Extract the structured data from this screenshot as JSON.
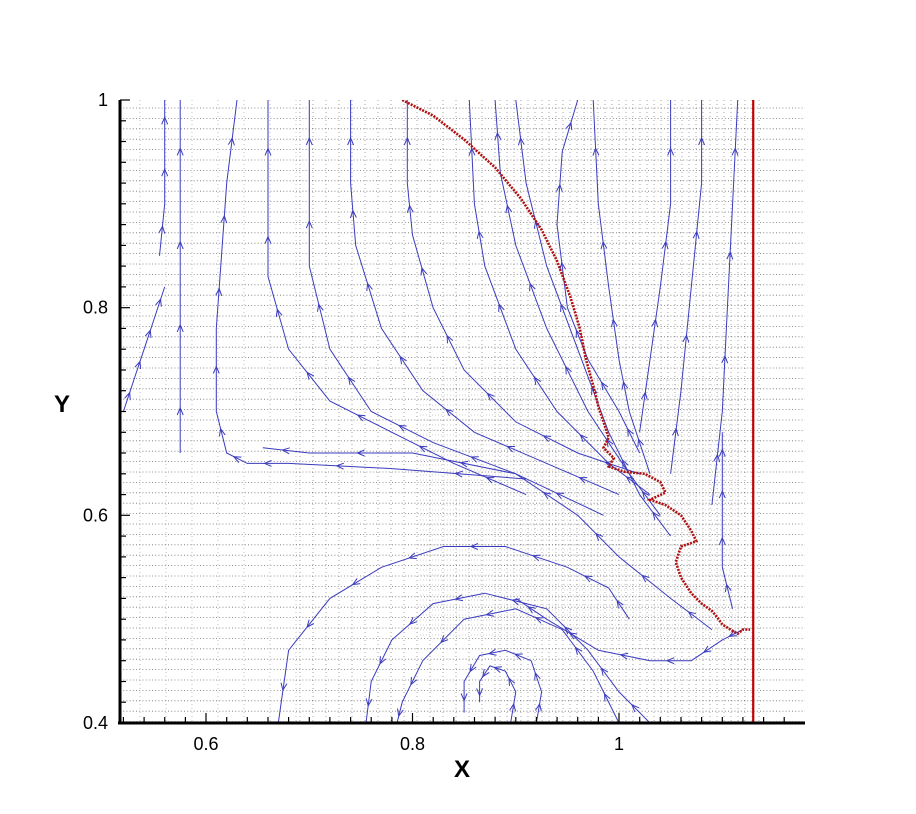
{
  "chart_data": {
    "type": "line",
    "title": "",
    "xlabel": "X",
    "ylabel": "Y",
    "xlim": [
      0.516,
      1.18
    ],
    "ylim": [
      0.4,
      1.0
    ],
    "x_ticks": [
      0.6,
      0.8,
      1.0
    ],
    "x_tick_labels": [
      "0.6",
      "0.8",
      "1"
    ],
    "y_ticks": [
      0.4,
      0.6,
      0.8,
      1.0
    ],
    "y_tick_labels": [
      "0.4",
      "0.6",
      "0.8",
      "1"
    ],
    "grid": "adaptive mesh (dotted)",
    "colors": {
      "streamline": "#3b3bbf",
      "interface": "#b01010",
      "boundary": "#c00000",
      "mesh": "#000000"
    },
    "boundary_line": {
      "x": 1.13
    },
    "interface_curve": [
      [
        0.79,
        1.0
      ],
      [
        0.82,
        0.985
      ],
      [
        0.85,
        0.962
      ],
      [
        0.88,
        0.935
      ],
      [
        0.905,
        0.905
      ],
      [
        0.925,
        0.875
      ],
      [
        0.94,
        0.845
      ],
      [
        0.953,
        0.81
      ],
      [
        0.962,
        0.78
      ],
      [
        0.968,
        0.75
      ],
      [
        0.975,
        0.725
      ],
      [
        0.98,
        0.705
      ],
      [
        0.985,
        0.69
      ],
      [
        0.99,
        0.675
      ],
      [
        0.985,
        0.665
      ],
      [
        0.995,
        0.655
      ],
      [
        0.99,
        0.647
      ],
      [
        1.005,
        0.642
      ],
      [
        1.025,
        0.64
      ],
      [
        1.04,
        0.632
      ],
      [
        1.045,
        0.622
      ],
      [
        1.03,
        0.615
      ],
      [
        1.045,
        0.61
      ],
      [
        1.06,
        0.6
      ],
      [
        1.07,
        0.585
      ],
      [
        1.075,
        0.575
      ],
      [
        1.06,
        0.57
      ],
      [
        1.055,
        0.555
      ],
      [
        1.06,
        0.54
      ],
      [
        1.07,
        0.525
      ],
      [
        1.08,
        0.515
      ],
      [
        1.09,
        0.508
      ],
      [
        1.095,
        0.502
      ],
      [
        1.1,
        0.495
      ],
      [
        1.108,
        0.49
      ],
      [
        1.115,
        0.486
      ],
      [
        1.12,
        0.49
      ],
      [
        1.127,
        0.49
      ]
    ],
    "series": [
      {
        "values": [
          [
            0.52,
            0.7
          ],
          [
            0.53,
            0.73
          ],
          [
            0.54,
            0.76
          ],
          [
            0.55,
            0.79
          ],
          [
            0.56,
            0.82
          ]
        ]
      },
      {
        "values": [
          [
            0.555,
            0.85
          ],
          [
            0.56,
            0.9
          ],
          [
            0.56,
            0.96
          ],
          [
            0.56,
            1.0
          ]
        ]
      },
      {
        "values": [
          [
            0.575,
            0.66
          ],
          [
            0.575,
            0.74
          ],
          [
            0.575,
            0.82
          ],
          [
            0.575,
            0.9
          ],
          [
            0.575,
            1.0
          ]
        ]
      },
      {
        "values": [
          [
            0.91,
            0.635
          ],
          [
            0.78,
            0.645
          ],
          [
            0.68,
            0.65
          ],
          [
            0.64,
            0.65
          ],
          [
            0.62,
            0.66
          ],
          [
            0.61,
            0.7
          ],
          [
            0.61,
            0.78
          ],
          [
            0.615,
            0.85
          ],
          [
            0.62,
            0.92
          ],
          [
            0.63,
            1.0
          ]
        ]
      },
      {
        "values": [
          [
            0.91,
            0.62
          ],
          [
            0.84,
            0.65
          ],
          [
            0.78,
            0.68
          ],
          [
            0.72,
            0.71
          ],
          [
            0.68,
            0.76
          ],
          [
            0.66,
            0.83
          ],
          [
            0.66,
            0.9
          ],
          [
            0.66,
            1.0
          ]
        ]
      },
      {
        "values": [
          [
            0.985,
            0.6
          ],
          [
            0.9,
            0.64
          ],
          [
            0.82,
            0.67
          ],
          [
            0.76,
            0.7
          ],
          [
            0.72,
            0.76
          ],
          [
            0.7,
            0.84
          ],
          [
            0.7,
            0.92
          ],
          [
            0.7,
            1.0
          ]
        ]
      },
      {
        "values": [
          [
            1.0,
            0.62
          ],
          [
            0.93,
            0.65
          ],
          [
            0.86,
            0.68
          ],
          [
            0.81,
            0.72
          ],
          [
            0.77,
            0.78
          ],
          [
            0.745,
            0.86
          ],
          [
            0.74,
            0.92
          ],
          [
            0.74,
            1.0
          ]
        ]
      },
      {
        "values": [
          [
            1.02,
            0.64
          ],
          [
            0.96,
            0.66
          ],
          [
            0.9,
            0.69
          ],
          [
            0.85,
            0.74
          ],
          [
            0.82,
            0.8
          ],
          [
            0.8,
            0.87
          ],
          [
            0.795,
            0.92
          ],
          [
            0.795,
            1.0
          ]
        ]
      },
      {
        "values": [
          [
            1.03,
            0.62
          ],
          [
            0.99,
            0.65
          ],
          [
            0.94,
            0.7
          ],
          [
            0.9,
            0.76
          ],
          [
            0.87,
            0.84
          ],
          [
            0.86,
            0.9
          ],
          [
            0.855,
            1.0
          ]
        ]
      },
      {
        "values": [
          [
            1.04,
            0.6
          ],
          [
            1.01,
            0.64
          ],
          [
            0.97,
            0.7
          ],
          [
            0.93,
            0.78
          ],
          [
            0.9,
            0.86
          ],
          [
            0.885,
            0.93
          ],
          [
            0.88,
            1.0
          ]
        ]
      },
      {
        "values": [
          [
            1.05,
            0.58
          ],
          [
            1.02,
            0.62
          ],
          [
            0.99,
            0.68
          ],
          [
            0.96,
            0.76
          ],
          [
            0.93,
            0.84
          ],
          [
            0.91,
            0.92
          ],
          [
            0.9,
            1.0
          ]
        ]
      },
      {
        "values": [
          [
            1.09,
            0.49
          ],
          [
            1.05,
            0.52
          ],
          [
            1.0,
            0.56
          ],
          [
            0.96,
            0.6
          ],
          [
            0.9,
            0.64
          ],
          [
            0.8,
            0.66
          ],
          [
            0.7,
            0.66
          ],
          [
            0.655,
            0.665
          ]
        ]
      },
      {
        "values": [
          [
            1.02,
            0.66
          ],
          [
            1.0,
            0.7
          ],
          [
            0.97,
            0.75
          ],
          [
            0.95,
            0.8
          ],
          [
            0.94,
            0.88
          ],
          [
            0.945,
            0.95
          ],
          [
            0.96,
            1.0
          ]
        ]
      },
      {
        "values": [
          [
            1.03,
            0.64
          ],
          [
            1.01,
            0.7
          ],
          [
            1.0,
            0.75
          ],
          [
            0.99,
            0.82
          ],
          [
            0.98,
            0.9
          ],
          [
            0.975,
            1.0
          ]
        ]
      },
      {
        "values": [
          [
            1.02,
            0.68
          ],
          [
            1.03,
            0.75
          ],
          [
            1.04,
            0.82
          ],
          [
            1.05,
            0.9
          ],
          [
            1.05,
            1.0
          ]
        ]
      },
      {
        "values": [
          [
            1.05,
            0.64
          ],
          [
            1.06,
            0.72
          ],
          [
            1.07,
            0.82
          ],
          [
            1.08,
            0.92
          ],
          [
            1.08,
            1.0
          ]
        ]
      },
      {
        "values": [
          [
            1.09,
            0.61
          ],
          [
            1.1,
            0.7
          ],
          [
            1.105,
            0.8
          ],
          [
            1.11,
            0.9
          ],
          [
            1.115,
            1.0
          ]
        ]
      },
      {
        "values": [
          [
            1.11,
            0.51
          ],
          [
            1.1,
            0.55
          ],
          [
            1.1,
            0.6
          ],
          [
            1.1,
            0.64
          ],
          [
            1.1,
            0.68
          ]
        ]
      },
      {
        "values": [
          [
            1.12,
            0.49
          ],
          [
            1.1,
            0.48
          ],
          [
            1.07,
            0.46
          ],
          [
            1.03,
            0.46
          ],
          [
            0.98,
            0.47
          ],
          [
            0.93,
            0.5
          ],
          [
            0.9,
            0.52
          ]
        ]
      },
      {
        "values": [
          [
            1.01,
            0.5
          ],
          [
            0.99,
            0.53
          ],
          [
            0.95,
            0.55
          ],
          [
            0.89,
            0.57
          ],
          [
            0.83,
            0.57
          ],
          [
            0.77,
            0.55
          ],
          [
            0.72,
            0.52
          ],
          [
            0.68,
            0.47
          ],
          [
            0.67,
            0.4
          ]
        ]
      },
      {
        "values": [
          [
            1.03,
            0.4
          ],
          [
            1.0,
            0.43
          ],
          [
            0.97,
            0.47
          ],
          [
            0.93,
            0.51
          ],
          [
            0.87,
            0.525
          ],
          [
            0.82,
            0.515
          ],
          [
            0.78,
            0.48
          ],
          [
            0.76,
            0.44
          ],
          [
            0.755,
            0.4
          ]
        ]
      },
      {
        "values": [
          [
            1.0,
            0.4
          ],
          [
            0.975,
            0.45
          ],
          [
            0.945,
            0.49
          ],
          [
            0.9,
            0.51
          ],
          [
            0.85,
            0.5
          ],
          [
            0.81,
            0.46
          ],
          [
            0.79,
            0.42
          ],
          [
            0.785,
            0.4
          ]
        ]
      },
      {
        "values": [
          [
            0.92,
            0.4
          ],
          [
            0.925,
            0.43
          ],
          [
            0.915,
            0.46
          ],
          [
            0.89,
            0.47
          ],
          [
            0.865,
            0.465
          ],
          [
            0.85,
            0.44
          ],
          [
            0.85,
            0.41
          ]
        ]
      },
      {
        "values": [
          [
            0.895,
            0.4
          ],
          [
            0.9,
            0.43
          ],
          [
            0.89,
            0.45
          ],
          [
            0.875,
            0.455
          ],
          [
            0.865,
            0.44
          ],
          [
            0.865,
            0.42
          ]
        ]
      }
    ]
  }
}
